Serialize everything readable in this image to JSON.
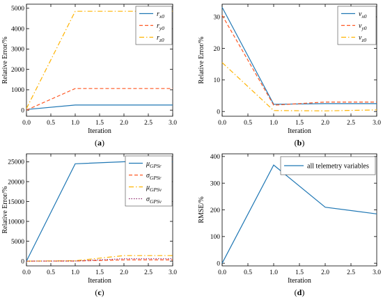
{
  "chart_data": [
    {
      "panel_label": "(a)",
      "type": "line",
      "x": [
        0,
        1,
        2,
        3
      ],
      "xlabel": "Iteration",
      "ylabel": "Relative Error/%",
      "xlim": [
        0,
        3
      ],
      "ylim": [
        -300,
        5200
      ],
      "xticks": [
        0,
        0.5,
        1,
        1.5,
        2,
        2.5,
        3
      ],
      "xtick_labels": [
        "0.0",
        "0.5",
        "1.0",
        "1.5",
        "2.0",
        "2.5",
        "3.0"
      ],
      "yticks": [
        0,
        1000,
        2000,
        3000,
        4000,
        5000
      ],
      "ytick_labels": [
        "0",
        "1000",
        "2000",
        "3000",
        "4000",
        "5000"
      ],
      "grid": false,
      "legend_position": "top-right",
      "series": [
        {
          "name": "r",
          "sub": "x0",
          "color": "#1f77b4",
          "dash": "solid",
          "values": [
            30,
            250,
            250,
            250
          ]
        },
        {
          "name": "r",
          "sub": "y0",
          "color": "#ff5722",
          "dash": "dashed",
          "values": [
            0,
            1060,
            1060,
            1060
          ]
        },
        {
          "name": "r",
          "sub": "z0",
          "color": "#ffb300",
          "dash": "dashdot",
          "values": [
            80,
            4850,
            4850,
            4850
          ]
        }
      ]
    },
    {
      "panel_label": "(b)",
      "type": "line",
      "x": [
        0,
        1,
        2,
        3
      ],
      "xlabel": "Iteration",
      "ylabel": "Relative Error/%",
      "xlim": [
        0,
        3
      ],
      "ylim": [
        -1.5,
        34
      ],
      "xticks": [
        0,
        0.5,
        1,
        1.5,
        2,
        2.5,
        3
      ],
      "xtick_labels": [
        "0.0",
        "0.5",
        "1.0",
        "1.5",
        "2.0",
        "2.5",
        "3.0"
      ],
      "yticks": [
        0,
        10,
        20,
        30
      ],
      "ytick_labels": [
        "0",
        "10",
        "20",
        "30"
      ],
      "grid": false,
      "legend_position": "top-right",
      "series": [
        {
          "name": "v",
          "sub": "x0",
          "color": "#1f77b4",
          "dash": "solid",
          "values": [
            33,
            2.3,
            2.5,
            2.5
          ]
        },
        {
          "name": "v",
          "sub": "y0",
          "color": "#ff5722",
          "dash": "dashed",
          "values": [
            30.5,
            2,
            3,
            3
          ]
        },
        {
          "name": "v",
          "sub": "z0",
          "color": "#ffb300",
          "dash": "dashdot",
          "values": [
            15.5,
            0.3,
            0.2,
            0.5
          ]
        }
      ]
    },
    {
      "panel_label": "(c)",
      "type": "line",
      "x": [
        0,
        1,
        2,
        3
      ],
      "xlabel": "Iteration",
      "ylabel": "Relative Error/%",
      "xlim": [
        0,
        3
      ],
      "ylim": [
        -1200,
        27000
      ],
      "xticks": [
        0,
        0.5,
        1,
        1.5,
        2,
        2.5,
        3
      ],
      "xtick_labels": [
        "0.0",
        "0.5",
        "1.0",
        "1.5",
        "2.0",
        "2.5",
        "3.0"
      ],
      "yticks": [
        0,
        5000,
        10000,
        15000,
        20000,
        25000
      ],
      "ytick_labels": [
        "0",
        "5000",
        "10000",
        "15000",
        "20000",
        "25000"
      ],
      "grid": false,
      "legend_position": "top-right",
      "series": [
        {
          "name": "μ",
          "sub": "GPSr",
          "color": "#1f77b4",
          "dash": "solid",
          "values": [
            0,
            24500,
            25000,
            25000
          ]
        },
        {
          "name": "σ",
          "sub": "GPSr",
          "color": "#ff5722",
          "dash": "dashed",
          "values": [
            0,
            30,
            300,
            300
          ]
        },
        {
          "name": "μ",
          "sub": "GPSv",
          "color": "#ffb300",
          "dash": "dashdot",
          "values": [
            0,
            100,
            1400,
            1400
          ]
        },
        {
          "name": "σ",
          "sub": "GPSv",
          "color": "#8e2a6e",
          "dash": "dotted",
          "values": [
            0,
            20,
            600,
            600
          ]
        }
      ]
    },
    {
      "panel_label": "(d)",
      "type": "line",
      "x": [
        0,
        1,
        2,
        3
      ],
      "xlabel": "Iteration",
      "ylabel": "RMSE/%",
      "xlim": [
        0,
        3
      ],
      "ylim": [
        -10,
        410
      ],
      "xticks": [
        0,
        0.5,
        1,
        1.5,
        2,
        2.5,
        3
      ],
      "xtick_labels": [
        "0.0",
        "0.5",
        "1.0",
        "1.5",
        "2.0",
        "2.5",
        "3.0"
      ],
      "yticks": [
        0,
        100,
        200,
        300,
        400
      ],
      "ytick_labels": [
        "0",
        "100",
        "200",
        "300",
        "400"
      ],
      "grid": false,
      "legend_position": "top-right",
      "series": [
        {
          "name": "all telemetry variables",
          "color": "#1f77b4",
          "dash": "solid",
          "values": [
            0,
            368,
            210,
            185
          ]
        }
      ]
    }
  ]
}
